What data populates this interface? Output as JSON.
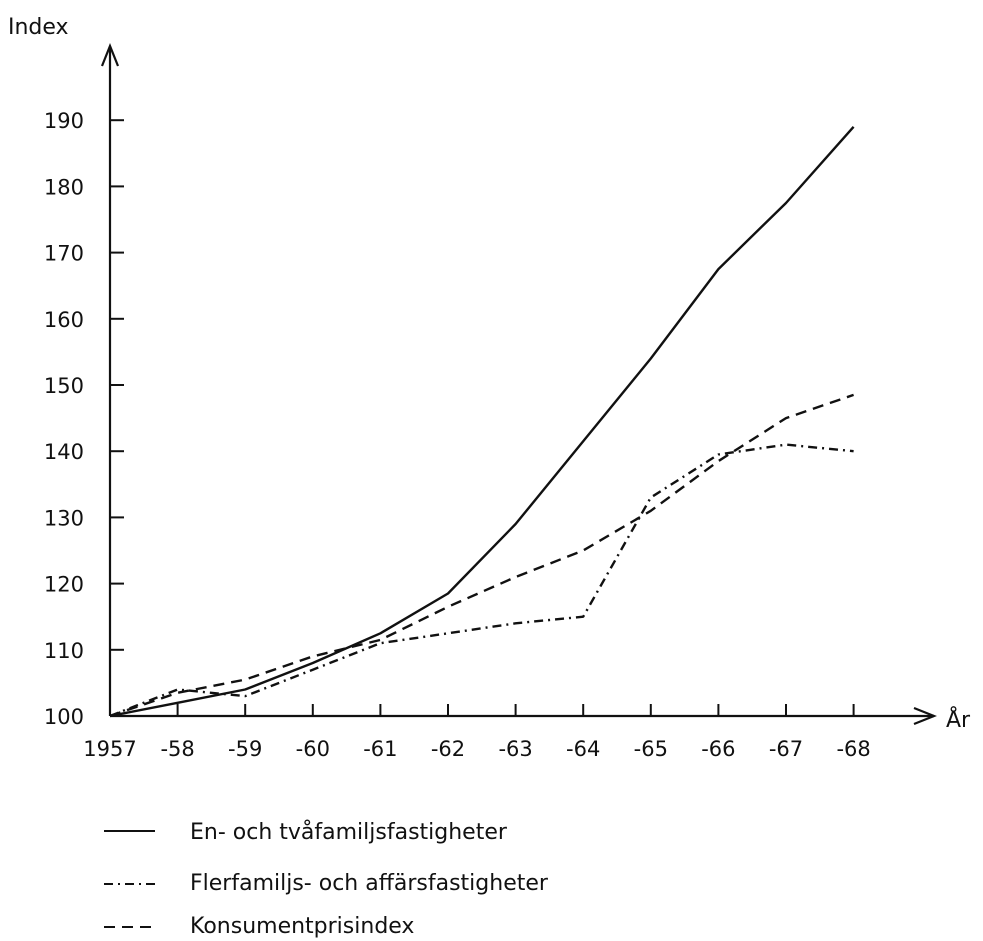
{
  "chart_data": {
    "type": "line",
    "title": "",
    "ylabel": "Index",
    "xlabel": "År",
    "categories": [
      "1957",
      "-58",
      "-59",
      "-60",
      "-61",
      "-62",
      "-63",
      "-64",
      "-65",
      "-66",
      "-67",
      "-68"
    ],
    "yticks": [
      100,
      110,
      120,
      130,
      140,
      150,
      160,
      170,
      180,
      190
    ],
    "ylim": [
      100,
      190
    ],
    "grid": false,
    "legend_position": "bottom-left",
    "series": [
      {
        "name": "En- och tvåfamiljsfastigheter",
        "style": "solid",
        "values": [
          100,
          102,
          104,
          108,
          112.5,
          118.5,
          129,
          141.5,
          154,
          167.5,
          177.5,
          189
        ]
      },
      {
        "name": "Flerfamiljs- och affärsfastigheter",
        "style": "dash-dot",
        "values": [
          100,
          104,
          103,
          107,
          111,
          112.5,
          114,
          115,
          133,
          139.5,
          141,
          140
        ]
      },
      {
        "name": "Konsumentprisindex",
        "style": "dashed",
        "values": [
          100,
          103.5,
          105.5,
          109,
          111.5,
          116.5,
          121,
          125,
          131,
          138.5,
          145,
          148.5
        ]
      }
    ]
  }
}
